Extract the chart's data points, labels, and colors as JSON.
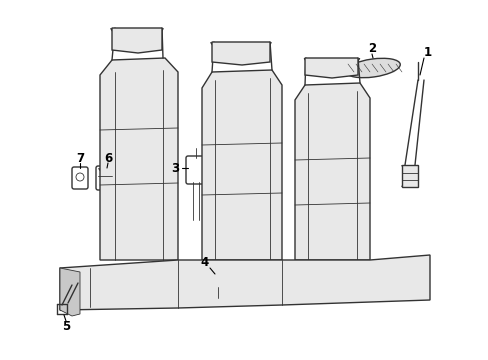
{
  "background_color": "#ffffff",
  "line_color": "#333333",
  "label_color": "#000000",
  "fig_width": 4.89,
  "fig_height": 3.6,
  "dpi": 100,
  "seat_gray": "#c8c8c8",
  "seat_light": "#e8e8e8",
  "label_fontsize": 8.5
}
